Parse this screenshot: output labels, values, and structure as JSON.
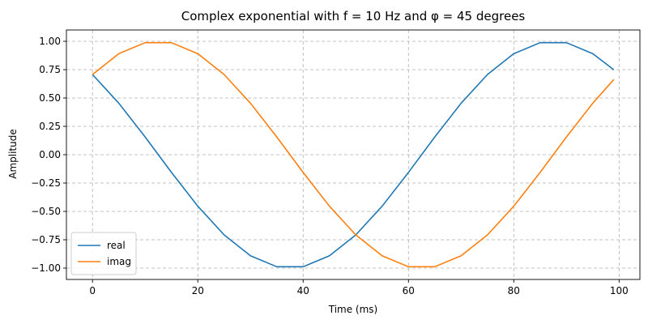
{
  "chart_data": {
    "type": "line",
    "title": "Complex exponential with f = 10 Hz and φ = 45 degrees",
    "xlabel": "Time (ms)",
    "ylabel": "Amplitude",
    "xlim": [
      -4.95,
      103.95
    ],
    "ylim": [
      -1.1,
      1.1
    ],
    "xticks": [
      0,
      20,
      40,
      60,
      80,
      100
    ],
    "yticks": [
      -1.0,
      -0.75,
      -0.5,
      -0.25,
      0.0,
      0.25,
      0.5,
      0.75,
      1.0
    ],
    "xtick_labels": [
      "0",
      "20",
      "40",
      "60",
      "80",
      "100"
    ],
    "ytick_labels": [
      "−1.00",
      "−0.75",
      "−0.50",
      "−0.25",
      "0.00",
      "0.25",
      "0.50",
      "0.75",
      "1.00"
    ],
    "grid": true,
    "legend_position": "lower-left",
    "x": [
      0,
      5,
      10,
      15,
      20,
      25,
      30,
      35,
      40,
      45,
      50,
      55,
      60,
      65,
      70,
      75,
      80,
      85,
      90,
      95,
      99
    ],
    "series": [
      {
        "name": "real",
        "color": "#1f77b4",
        "values": [
          0.707,
          0.454,
          0.156,
          -0.156,
          -0.454,
          -0.707,
          -0.891,
          -0.988,
          -0.988,
          -0.891,
          -0.707,
          -0.454,
          -0.156,
          0.156,
          0.454,
          0.707,
          0.891,
          0.988,
          0.988,
          0.891,
          0.749
        ]
      },
      {
        "name": "imag",
        "color": "#ff7f0e",
        "values": [
          0.707,
          0.891,
          0.988,
          0.988,
          0.891,
          0.707,
          0.454,
          0.156,
          -0.156,
          -0.454,
          -0.707,
          -0.891,
          -0.988,
          -0.988,
          -0.891,
          -0.707,
          -0.454,
          -0.156,
          0.156,
          0.454,
          0.663
        ]
      }
    ]
  }
}
